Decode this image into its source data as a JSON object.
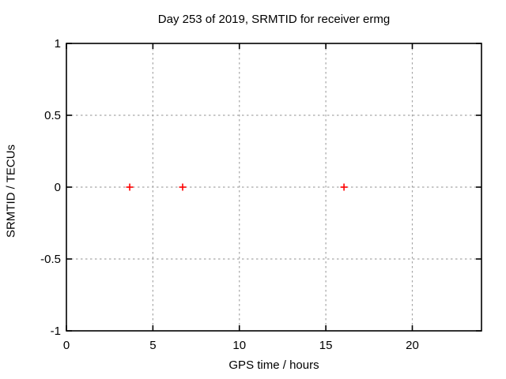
{
  "window": {
    "background": "#ffffff"
  },
  "colors": {
    "axis": "#000000",
    "grid": "#a6a6a6",
    "marker": "#ff0000",
    "text": "#000000"
  },
  "chart_data": {
    "type": "scatter",
    "title": "Day 253 of 2019, SRMTID for receiver ermg",
    "xlabel": "GPS time / hours",
    "ylabel": "SRMTID / TECUs",
    "xlim": [
      0,
      24
    ],
    "ylim": [
      -1,
      1
    ],
    "xticks": [
      0,
      5,
      10,
      15,
      20
    ],
    "yticks": [
      -1,
      -0.5,
      0,
      0.5,
      1
    ],
    "grid": true,
    "legend_position": "none",
    "marker_style": "plus",
    "series": [
      {
        "name": "SRMTID",
        "marker": "plus",
        "color": "#ff0000",
        "points": [
          {
            "x": 3.66,
            "y": 0.0
          },
          {
            "x": 6.72,
            "y": 0.0
          },
          {
            "x": 16.05,
            "y": 0.0
          }
        ]
      }
    ]
  }
}
